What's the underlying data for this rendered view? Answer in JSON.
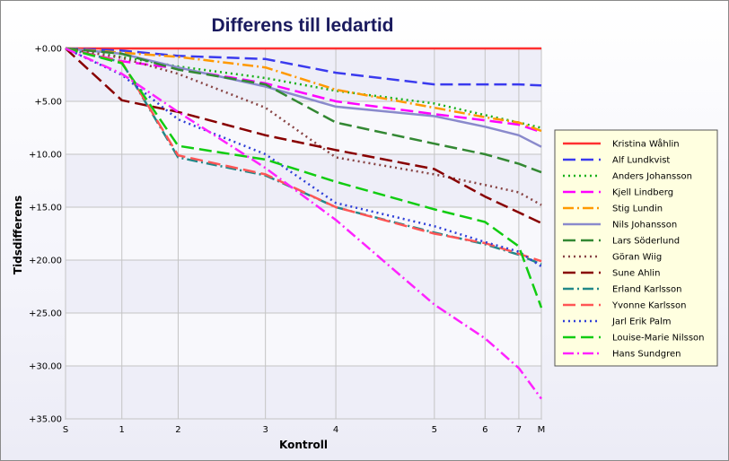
{
  "chart_data": {
    "type": "line",
    "title": "Differens till ledartid",
    "xlabel": "Kontroll",
    "ylabel": "Tidsdifferens",
    "x_categories": [
      "S",
      "1",
      "2",
      "3",
      "4",
      "5",
      "6",
      "7",
      "M"
    ],
    "x_positions": [
      0,
      1,
      2,
      3.55,
      4.8,
      6.55,
      7.45,
      8.05,
      8.45
    ],
    "y_ticks": [
      "+0.00",
      "+5.00",
      "+10.00",
      "+15.00",
      "+20.00",
      "+25.00",
      "+30.00",
      "+35.00"
    ],
    "ylim": [
      0,
      35
    ],
    "y_inverted": true,
    "grid": true,
    "legend_position": "right",
    "series": [
      {
        "name": "Kristina Wåhlin",
        "color": "#ff3030",
        "style": "solid",
        "values": [
          0,
          0,
          0,
          0,
          0,
          0,
          0,
          0,
          0
        ]
      },
      {
        "name": "Alf Lundkvist",
        "color": "#3a3aee",
        "style": "dash",
        "values": [
          0,
          0.2,
          0.7,
          1.0,
          2.3,
          3.4,
          3.4,
          3.4,
          3.5
        ]
      },
      {
        "name": "Anders Johansson",
        "color": "#19b019",
        "style": "dot",
        "values": [
          0,
          0.8,
          1.7,
          2.8,
          4.0,
          5.2,
          6.3,
          7.0,
          7.5
        ]
      },
      {
        "name": "Kjell Lindberg",
        "color": "#ff00ff",
        "style": "dash",
        "values": [
          0,
          1.2,
          1.9,
          3.3,
          5.0,
          6.2,
          6.8,
          7.2,
          7.9
        ]
      },
      {
        "name": "Stig Lundin",
        "color": "#ff9900",
        "style": "dashdot",
        "values": [
          0,
          0.4,
          0.8,
          1.8,
          3.9,
          5.6,
          6.5,
          7.0,
          7.8
        ]
      },
      {
        "name": "Nils Johansson",
        "color": "#8a8acc",
        "style": "solid",
        "values": [
          0,
          0.5,
          1.8,
          3.6,
          5.5,
          6.4,
          7.4,
          8.2,
          9.3
        ]
      },
      {
        "name": "Lars Söderlund",
        "color": "#338833",
        "style": "dash",
        "values": [
          0,
          0.5,
          2.0,
          3.4,
          7.0,
          9.0,
          10.0,
          10.9,
          11.7
        ]
      },
      {
        "name": "Göran Wiig",
        "color": "#884444",
        "style": "dot",
        "values": [
          0,
          0.9,
          2.4,
          5.6,
          10.3,
          11.9,
          12.9,
          13.6,
          14.8
        ]
      },
      {
        "name": "Sune Ahlin",
        "color": "#880000",
        "style": "dash",
        "values": [
          0,
          4.9,
          6.0,
          8.2,
          9.6,
          11.4,
          14.0,
          15.5,
          16.5
        ]
      },
      {
        "name": "Erland Karlsson",
        "color": "#228888",
        "style": "dashdot",
        "values": [
          0,
          1.3,
          10.3,
          12.0,
          15.0,
          17.4,
          18.5,
          19.5,
          20.4
        ]
      },
      {
        "name": "Yvonne Karlsson",
        "color": "#ff5555",
        "style": "dash",
        "values": [
          0,
          1.3,
          10.1,
          11.9,
          15.0,
          17.5,
          18.4,
          19.4,
          20.1
        ]
      },
      {
        "name": "Jarl Erik Palm",
        "color": "#2f3fd8",
        "style": "dot",
        "values": [
          0,
          2.5,
          6.7,
          10.0,
          14.6,
          16.8,
          18.3,
          19.2,
          20.6
        ]
      },
      {
        "name": "Louise-Marie Nilsson",
        "color": "#11cc11",
        "style": "dash",
        "values": [
          0,
          1.4,
          9.2,
          10.5,
          12.6,
          15.2,
          16.4,
          18.7,
          24.5
        ]
      },
      {
        "name": "Hans Sundgren",
        "color": "#ff22ff",
        "style": "dashdot",
        "values": [
          0,
          2.4,
          6.0,
          11.3,
          16.2,
          24.2,
          27.4,
          30.2,
          33.1
        ]
      }
    ]
  }
}
